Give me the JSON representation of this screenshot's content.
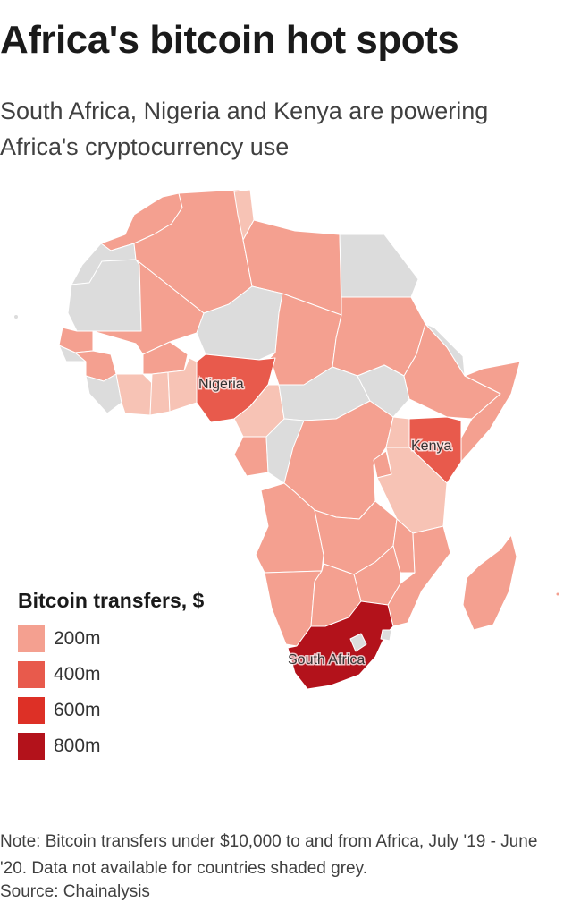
{
  "header": {
    "title": "Africa's bitcoin hot spots",
    "subtitle": "South Africa, Nigeria and Kenya are powering Africa's cryptocurrency use"
  },
  "map": {
    "labels": {
      "nigeria": "Nigeria",
      "kenya": "Kenya",
      "south_africa": "South Africa"
    },
    "colors": {
      "no_data": "#dcdcdc",
      "light": "#f7c3b5",
      "tier_200m": "#f4a090",
      "tier_400m": "#e85a4c",
      "tier_600m": "#dd3026",
      "tier_800m": "#b3121b"
    }
  },
  "legend": {
    "title": "Bitcoin transfers, $",
    "items": [
      {
        "label": "200m",
        "color": "#f4a090"
      },
      {
        "label": "400m",
        "color": "#e85a4c"
      },
      {
        "label": "600m",
        "color": "#dd3026"
      },
      {
        "label": "800m",
        "color": "#b3121b"
      }
    ]
  },
  "footer": {
    "note": "Note: Bitcoin transfers under $10,000 to and from Africa, July '19 - June '20. Data not available for countries shaded grey.",
    "source": "Source: Chainalysis"
  }
}
